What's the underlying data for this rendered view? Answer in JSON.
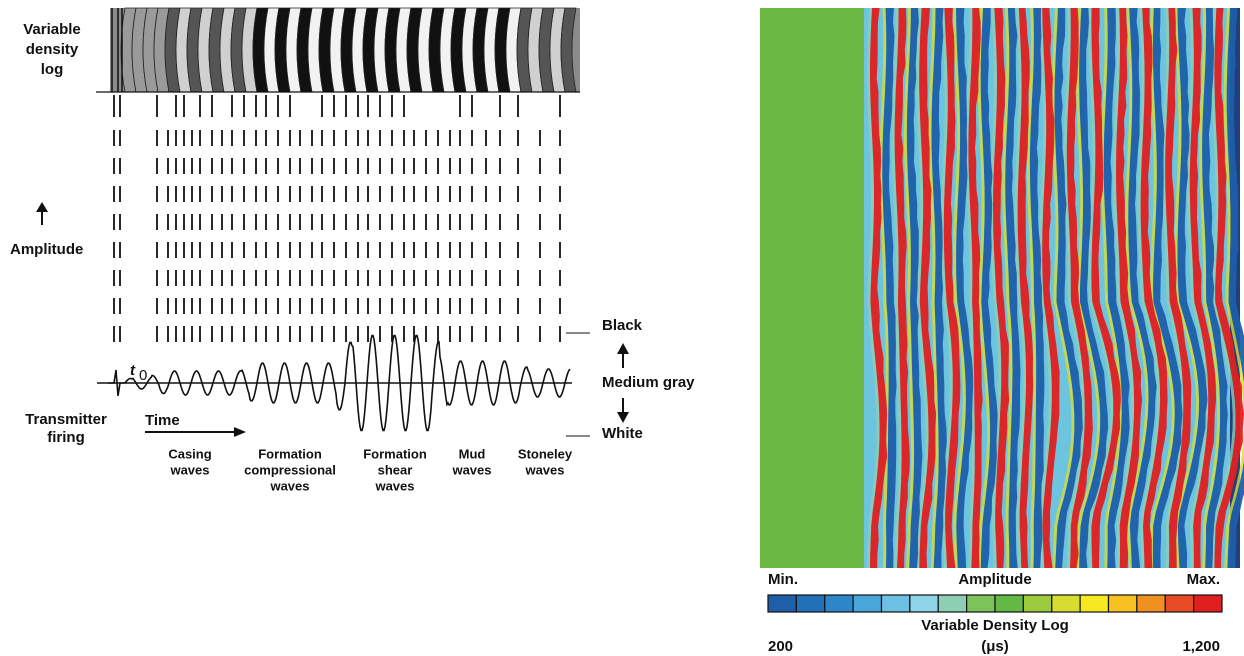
{
  "left_diagram": {
    "vdl_label": [
      "Variable",
      "density",
      "log"
    ],
    "amplitude_label": "Amplitude",
    "t0_label": "t",
    "t0_subscript": "0",
    "black_label": "Black",
    "medium_gray_label": "Medium gray",
    "white_label": "White",
    "transmitter_label": [
      "Transmitter",
      "firing"
    ],
    "time_label": "Time",
    "wave_labels": [
      [
        "Casing",
        "waves"
      ],
      [
        "Formation",
        "compressional",
        "waves"
      ],
      [
        "Formation",
        "shear",
        "waves"
      ],
      [
        "Mud",
        "waves"
      ],
      [
        "Stoneley",
        "waves"
      ]
    ]
  },
  "right_panel": {
    "min_label": "Min.",
    "amplitude_label": "Amplitude",
    "max_label": "Max.",
    "colorbar_colors": [
      "#1f5fa8",
      "#2270b8",
      "#2c86c8",
      "#4aa6da",
      "#6cc0e4",
      "#8fd4e8",
      "#8ccfb4",
      "#7cc35c",
      "#64b844",
      "#9ccc3c",
      "#d8dc30",
      "#f8e820",
      "#f8c020",
      "#f09020",
      "#e84a24",
      "#e02020"
    ],
    "title": "Variable Density Log",
    "start_label": "200",
    "unit_label": "(μs)",
    "end_label": "1,200"
  }
}
